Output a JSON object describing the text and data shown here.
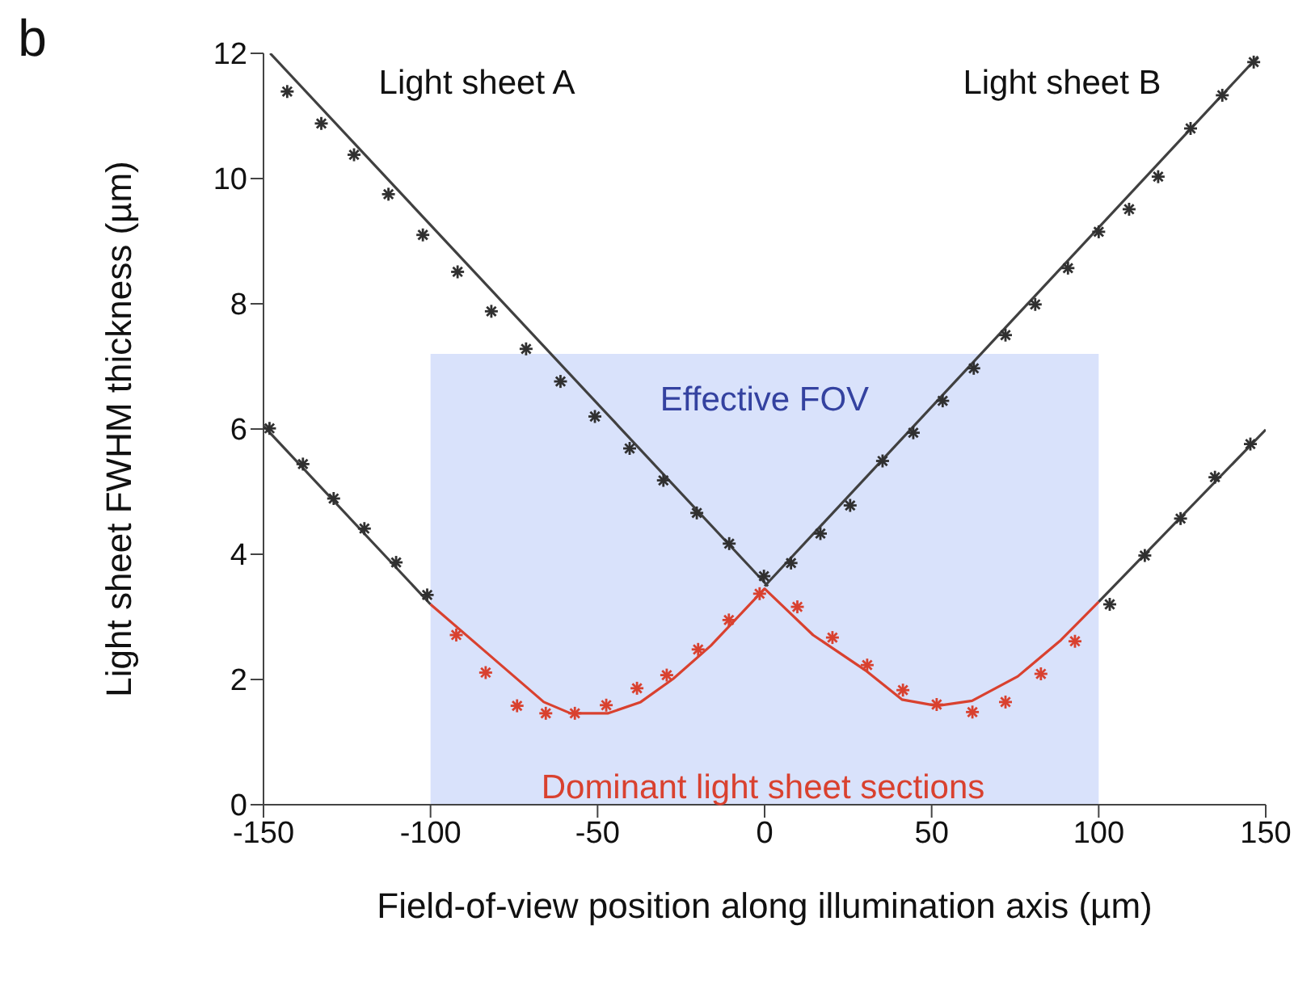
{
  "chart_data": {
    "type": "line",
    "xlabel": "Field-of-view position along illumination axis (µm)",
    "ylabel": "Light sheet FWHM thickness (µm)",
    "xlim": [
      -150,
      150
    ],
    "ylim": [
      0,
      12
    ],
    "xticks": [
      -150,
      -100,
      -50,
      0,
      50,
      100,
      150
    ],
    "yticks": [
      0,
      2,
      4,
      6,
      8,
      10,
      12
    ],
    "grid": false,
    "legend": false,
    "line_style": "solid",
    "series": [
      {
        "color": "#404040",
        "marker": "none",
        "x": [
          -148,
          1
        ],
        "values": [
          12.0,
          3.49
        ]
      },
      {
        "color": "#404040",
        "marker": "none",
        "x": [
          0,
          147.7
        ],
        "values": [
          3.49,
          11.95
        ]
      },
      {
        "color": "#404040",
        "marker": "none",
        "x": [
          -150,
          -100
        ],
        "values": [
          6.05,
          3.2
        ]
      },
      {
        "color": "#404040",
        "marker": "none",
        "x": [
          100,
          150
        ],
        "values": [
          3.24,
          5.99
        ]
      },
      {
        "color": "#d9412f",
        "marker": "none",
        "x": [
          -100,
          -83.9,
          -66.1,
          -58.1,
          -46.8,
          -37.1,
          -27.4,
          -16.1,
          0,
          14.5,
          30.6,
          41.1,
          51.6,
          62.1,
          75.8,
          88.7,
          100
        ],
        "values": [
          3.2,
          2.46,
          1.64,
          1.46,
          1.46,
          1.64,
          2.01,
          2.54,
          3.45,
          2.71,
          2.13,
          1.68,
          1.58,
          1.66,
          2.05,
          2.63,
          3.24
        ]
      },
      {
        "type": "scatter",
        "color": "#303030",
        "marker": "cross",
        "x": [
          -142.9,
          -132.7,
          -122.9,
          -112.6,
          -102.3,
          -91.9,
          -81.8,
          -71.4,
          -61.1,
          -50.8,
          -40.4,
          -30.3,
          -20.3,
          -10.6,
          -0.2,
          7.9,
          16.7,
          25.6,
          35.3,
          44.5,
          53.3,
          62.6,
          72.1,
          81,
          90.8,
          100,
          109.1,
          117.8,
          127.5,
          137,
          146.4,
          -148.2,
          -138.2,
          -129,
          -119.8,
          -110.3,
          -101,
          103.3,
          113.8,
          124.5,
          134.8,
          145.4
        ],
        "values": [
          11.39,
          10.88,
          10.38,
          9.75,
          9.1,
          8.51,
          7.88,
          7.28,
          6.76,
          6.2,
          5.69,
          5.18,
          4.66,
          4.17,
          3.65,
          3.86,
          4.33,
          4.78,
          5.49,
          5.94,
          6.45,
          6.97,
          7.5,
          7.99,
          8.57,
          9.15,
          9.51,
          10.03,
          10.8,
          11.33,
          11.86,
          6.01,
          5.44,
          4.89,
          4.41,
          3.87,
          3.35,
          3.2,
          3.98,
          4.57,
          5.23,
          5.76
        ]
      },
      {
        "type": "scatter",
        "color": "#d9412f",
        "marker": "cross",
        "x": [
          -92.3,
          -83.5,
          -74.1,
          -65.5,
          -56.8,
          -47.4,
          -38.2,
          -29.3,
          -19.9,
          -10.7,
          -1.5,
          9.8,
          20.3,
          30.7,
          41.4,
          51.5,
          62.2,
          72.1,
          82.7,
          92.9
        ],
        "values": [
          2.71,
          2.11,
          1.58,
          1.46,
          1.46,
          1.59,
          1.86,
          2.07,
          2.48,
          2.95,
          3.37,
          3.16,
          2.67,
          2.23,
          1.83,
          1.6,
          1.48,
          1.64,
          2.09,
          2.61
        ]
      }
    ],
    "bands": [
      {
        "axis": "x",
        "from": -100,
        "to": 100,
        "label": "Effective FOV",
        "color": "#d9e2fb"
      }
    ],
    "annotations": [
      "b",
      "Light sheet A",
      "Light sheet B",
      "Dominant light sheet sections"
    ]
  }
}
